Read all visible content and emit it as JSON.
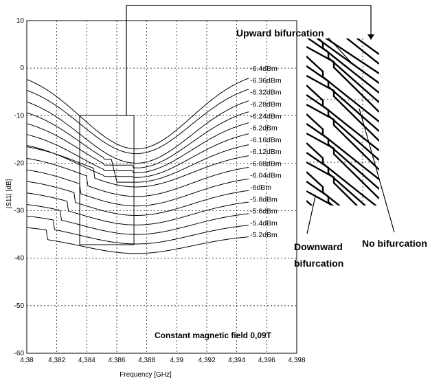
{
  "chart_data": {
    "type": "line",
    "xlabel": "Frequency [GHz]",
    "ylabel": "|S11| [dB]",
    "xlim": [
      4.38,
      4.398
    ],
    "ylim": [
      -60,
      10
    ],
    "x_ticks": [
      "4,38",
      "4,382",
      "4,384",
      "4,386",
      "4,388",
      "4,39",
      "4,392",
      "4,394",
      "4,396",
      "4,398"
    ],
    "y_ticks": [
      "10",
      "0",
      "-10",
      "-20",
      "-30",
      "-40",
      "-50",
      "-60"
    ],
    "grid": "dotted",
    "center_frequency": 4.3873,
    "series": [
      {
        "name": "-6.4dBm",
        "edge_value": 0,
        "min_value": -17,
        "bifurcation": "none"
      },
      {
        "name": "-6.36dBm",
        "edge_value": -2.5,
        "min_value": -18,
        "bifurcation": "none"
      },
      {
        "name": "-6.32dBm",
        "edge_value": -5,
        "min_value": -20,
        "bifurcation": "none"
      },
      {
        "name": "-6.28dBm",
        "edge_value": -7.5,
        "min_value": -21,
        "bifurcation": "upward"
      },
      {
        "name": "-6.24dBm",
        "edge_value": -10,
        "min_value": -22,
        "bifurcation": "upward"
      },
      {
        "name": "-6.2dBm",
        "edge_value": -12.5,
        "min_value": -23,
        "bifurcation": "upward"
      },
      {
        "name": "-6.16dBm",
        "edge_value": -15,
        "min_value": -24,
        "bifurcation": "upward"
      },
      {
        "name": "-6.12dBm",
        "edge_value": -17.5,
        "min_value": -25,
        "bifurcation": "downward"
      },
      {
        "name": "-6.08dBm",
        "edge_value": -20,
        "min_value": -27,
        "bifurcation": "downward"
      },
      {
        "name": "-6.04dBm",
        "edge_value": -22.5,
        "min_value": -29,
        "bifurcation": "downward"
      },
      {
        "name": "-6dBm",
        "edge_value": -25,
        "min_value": -31,
        "bifurcation": "downward"
      },
      {
        "name": "-5.8dBm",
        "edge_value": -27.5,
        "min_value": -33,
        "bifurcation": "downward"
      },
      {
        "name": "-5.6dBm",
        "edge_value": -30,
        "min_value": -35,
        "bifurcation": "downward"
      },
      {
        "name": "-5.4dBm",
        "edge_value": -32.5,
        "min_value": -37,
        "bifurcation": "downward"
      },
      {
        "name": "-5.2dBm",
        "edge_value": -35,
        "min_value": -39,
        "bifurcation": "downward"
      }
    ],
    "annotations": {
      "upward": "Upward bifurcation",
      "no": "No bifurcation",
      "downward_line1": "Downward",
      "downward_line2": "bifurcation",
      "field": "Constant magnetic field 0,09T"
    }
  }
}
